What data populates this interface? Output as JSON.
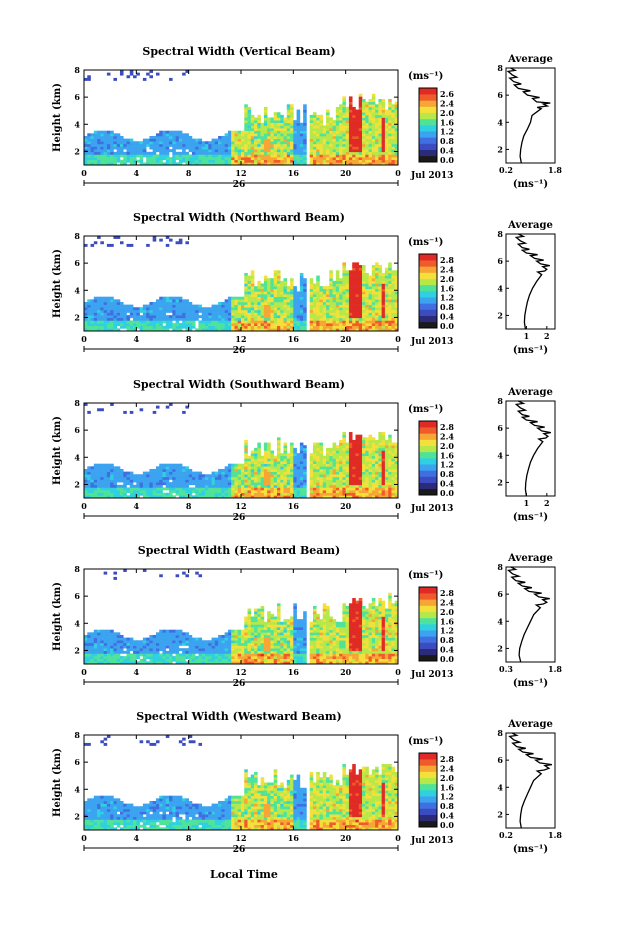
{
  "figure": {
    "xlabel": "Local Time",
    "colors": {
      "scale": [
        "#1a1a1a",
        "#2b2b7a",
        "#3b4cc0",
        "#3f6fe0",
        "#3ba3f0",
        "#2fd0e0",
        "#4fe39a",
        "#b6e84a",
        "#f4e03a",
        "#f7a534",
        "#ef5b2b",
        "#e02a25"
      ],
      "accent_red": "#e8312a",
      "missing": "#ffffff"
    }
  },
  "chart_data": [
    {
      "type": "heatmap",
      "title": "Spectral Width (Vertical Beam)",
      "ylabel": "Height (km)",
      "xlim": [
        0,
        24
      ],
      "ylim": [
        1,
        8
      ],
      "xticks": [
        "0",
        "4",
        "8",
        "12",
        "16",
        "20",
        "0"
      ],
      "yticks": [
        "2",
        "4",
        "6",
        "8"
      ],
      "day_label": "26",
      "date_label": "Jul 2013",
      "colorbar": {
        "unit": "(ms⁻¹)",
        "ticks": [
          "2.6",
          "2.4",
          "2.0",
          "1.6",
          "1.2",
          "0.8",
          "0.4",
          "0.0"
        ]
      },
      "average": {
        "title": "Average",
        "xlim": [
          0.2,
          1.8
        ],
        "xticks": [
          "0.2",
          "1.8"
        ],
        "yticks": [
          "2",
          "4",
          "6",
          "8"
        ],
        "xlabel": "(ms⁻¹)",
        "profile": [
          [
            1,
            0.7
          ],
          [
            1.5,
            0.66
          ],
          [
            2,
            0.68
          ],
          [
            2.5,
            0.72
          ],
          [
            3,
            0.78
          ],
          [
            3.5,
            0.9
          ],
          [
            4,
            1.0
          ],
          [
            4.5,
            1.05
          ],
          [
            5,
            1.35
          ],
          [
            5.2,
            1.55
          ],
          [
            5.5,
            1.2
          ],
          [
            6,
            0.9
          ],
          [
            6.5,
            0.6
          ],
          [
            7,
            0.45
          ],
          [
            7.5,
            0.4
          ],
          [
            8,
            0.35
          ]
        ]
      }
    },
    {
      "type": "heatmap",
      "title": "Spectral Width (Northward Beam)",
      "ylabel": "Height (km)",
      "xlim": [
        0,
        24
      ],
      "ylim": [
        1,
        8
      ],
      "xticks": [
        "0",
        "4",
        "8",
        "12",
        "16",
        "20",
        "0"
      ],
      "yticks": [
        "2",
        "4",
        "6",
        "8"
      ],
      "day_label": "26",
      "date_label": "Jul 2013",
      "colorbar": {
        "unit": "(ms⁻¹)",
        "ticks": [
          "2.8",
          "2.4",
          "2.0",
          "1.6",
          "1.2",
          "0.8",
          "0.4",
          "0.0"
        ]
      },
      "average": {
        "title": "Average",
        "xlim": [
          0,
          2.4
        ],
        "xticks": [
          "1",
          "2"
        ],
        "yticks": [
          "2",
          "4",
          "6",
          "8"
        ],
        "xlabel": "(ms⁻¹)",
        "profile": [
          [
            1,
            0.95
          ],
          [
            1.5,
            0.9
          ],
          [
            2,
            0.92
          ],
          [
            2.5,
            0.98
          ],
          [
            3,
            1.05
          ],
          [
            3.5,
            1.15
          ],
          [
            4,
            1.3
          ],
          [
            4.5,
            1.5
          ],
          [
            5,
            1.75
          ],
          [
            5.4,
            2.0
          ],
          [
            5.8,
            1.7
          ],
          [
            6.2,
            1.4
          ],
          [
            6.6,
            1.0
          ],
          [
            7,
            0.8
          ],
          [
            7.5,
            0.7
          ],
          [
            8,
            0.6
          ]
        ]
      }
    },
    {
      "type": "heatmap",
      "title": "Spectral Width (Southward Beam)",
      "ylabel": "Height (km)",
      "xlim": [
        0,
        24
      ],
      "ylim": [
        1,
        8
      ],
      "xticks": [
        "0",
        "4",
        "8",
        "12",
        "16",
        "20",
        "0"
      ],
      "yticks": [
        "2",
        "4",
        "6",
        "8"
      ],
      "day_label": "26",
      "date_label": "Jul 2013",
      "colorbar": {
        "unit": "(ms⁻¹)",
        "ticks": [
          "2.8",
          "2.4",
          "2.0",
          "1.6",
          "1.2",
          "0.8",
          "0.4",
          "0.0"
        ]
      },
      "average": {
        "title": "Average",
        "xlim": [
          0,
          2.4
        ],
        "xticks": [
          "1",
          "2"
        ],
        "yticks": [
          "2",
          "4",
          "6",
          "8"
        ],
        "xlabel": "(ms⁻¹)",
        "profile": [
          [
            1,
            1.0
          ],
          [
            1.5,
            0.95
          ],
          [
            2,
            0.97
          ],
          [
            2.5,
            1.02
          ],
          [
            3,
            1.1
          ],
          [
            3.5,
            1.2
          ],
          [
            4,
            1.35
          ],
          [
            4.5,
            1.55
          ],
          [
            5,
            1.8
          ],
          [
            5.4,
            2.05
          ],
          [
            5.8,
            1.75
          ],
          [
            6.2,
            1.4
          ],
          [
            6.6,
            1.0
          ],
          [
            7,
            0.8
          ],
          [
            7.5,
            0.7
          ],
          [
            8,
            0.6
          ]
        ]
      }
    },
    {
      "type": "heatmap",
      "title": "Spectral Width (Eastward Beam)",
      "ylabel": "Height (km)",
      "xlim": [
        0,
        24
      ],
      "ylim": [
        1,
        8
      ],
      "xticks": [
        "0",
        "4",
        "8",
        "12",
        "16",
        "20",
        "0"
      ],
      "yticks": [
        "2",
        "4",
        "6",
        "8"
      ],
      "day_label": "26",
      "date_label": "Jul 2013",
      "colorbar": {
        "unit": "(ms⁻¹)",
        "ticks": [
          "2.8",
          "2.4",
          "2.0",
          "1.6",
          "1.2",
          "0.8",
          "0.4",
          "0.0"
        ]
      },
      "average": {
        "title": "Average",
        "xlim": [
          0.3,
          1.8
        ],
        "xticks": [
          "0.3",
          "1.8"
        ],
        "yticks": [
          "2",
          "4",
          "6",
          "8"
        ],
        "xlabel": "(ms⁻¹)",
        "profile": [
          [
            1,
            0.75
          ],
          [
            1.5,
            0.7
          ],
          [
            2,
            0.72
          ],
          [
            2.5,
            0.78
          ],
          [
            3,
            0.85
          ],
          [
            3.5,
            0.95
          ],
          [
            4,
            1.05
          ],
          [
            4.5,
            1.15
          ],
          [
            5,
            1.35
          ],
          [
            5.4,
            1.55
          ],
          [
            5.8,
            1.3
          ],
          [
            6.2,
            1.0
          ],
          [
            6.6,
            0.8
          ],
          [
            7,
            0.6
          ],
          [
            7.5,
            0.5
          ],
          [
            8,
            0.45
          ]
        ]
      }
    },
    {
      "type": "heatmap",
      "title": "Spectral Width (Westward Beam)",
      "ylabel": "Height (km)",
      "xlim": [
        0,
        24
      ],
      "ylim": [
        1,
        8
      ],
      "xticks": [
        "0",
        "4",
        "8",
        "12",
        "16",
        "20",
        "0"
      ],
      "yticks": [
        "2",
        "4",
        "6",
        "8"
      ],
      "day_label": "26",
      "date_label": "Jul 2013",
      "colorbar": {
        "unit": "(ms⁻¹)",
        "ticks": [
          "2.8",
          "2.4",
          "2.0",
          "1.6",
          "1.2",
          "0.8",
          "0.4",
          "0.0"
        ]
      },
      "average": {
        "title": "Average",
        "xlim": [
          0.2,
          1.8
        ],
        "xticks": [
          "0.2",
          "1.8"
        ],
        "yticks": [
          "2",
          "4",
          "6",
          "8"
        ],
        "xlabel": "(ms⁻¹)",
        "profile": [
          [
            1,
            0.7
          ],
          [
            1.5,
            0.66
          ],
          [
            2,
            0.68
          ],
          [
            2.5,
            0.72
          ],
          [
            3,
            0.8
          ],
          [
            3.5,
            0.9
          ],
          [
            4,
            1.0
          ],
          [
            4.5,
            1.1
          ],
          [
            5,
            1.35
          ],
          [
            5.4,
            1.6
          ],
          [
            5.8,
            1.3
          ],
          [
            6.2,
            1.0
          ],
          [
            6.6,
            0.75
          ],
          [
            7,
            0.55
          ],
          [
            7.5,
            0.45
          ],
          [
            8,
            0.4
          ]
        ]
      }
    }
  ]
}
